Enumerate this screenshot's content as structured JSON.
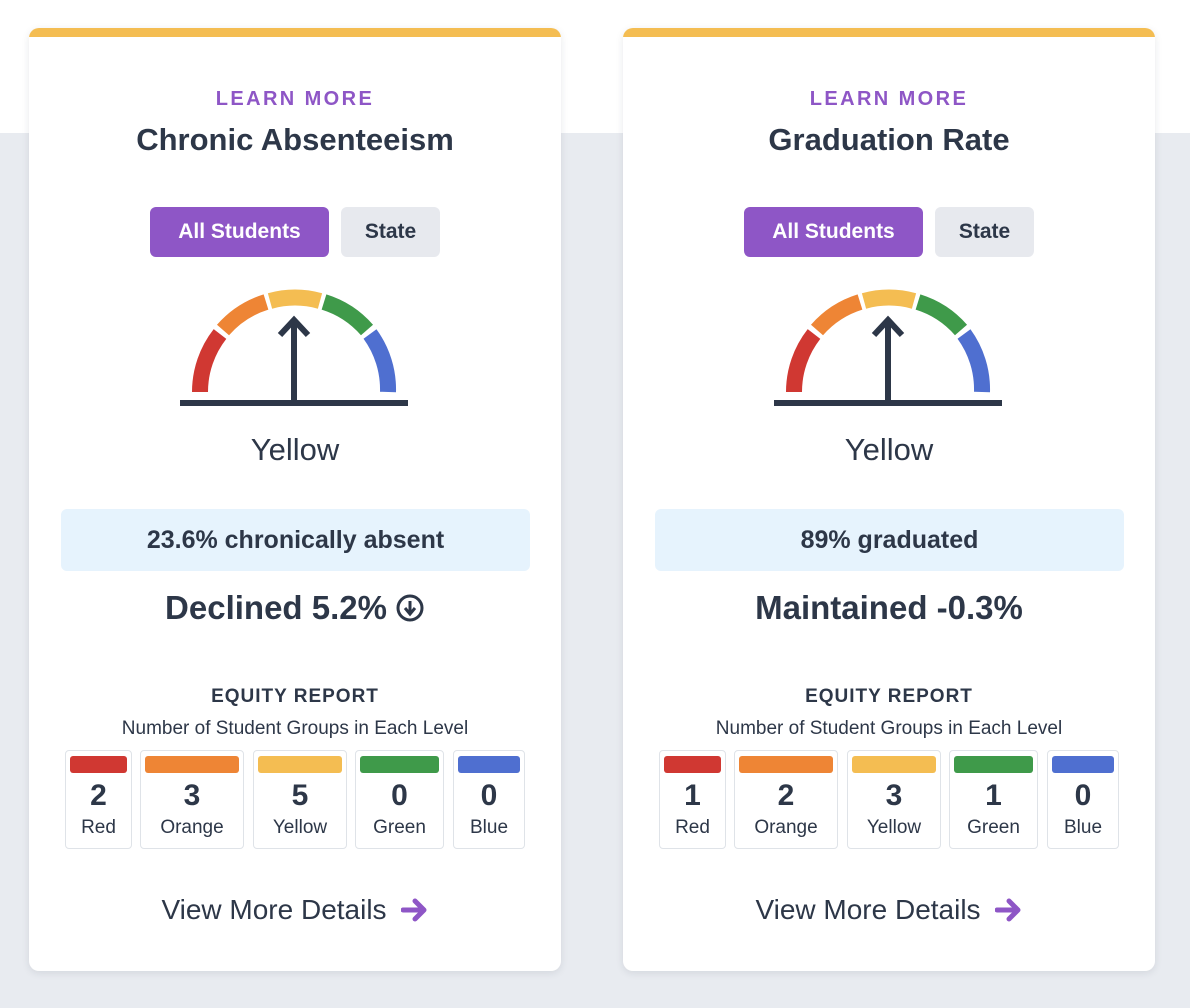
{
  "colors": {
    "accent": "#8e56c6",
    "red": "#d03832",
    "orange": "#ee8535",
    "yellow": "#f4bd52",
    "green": "#3f9a4a",
    "blue": "#4f6fd0"
  },
  "cards": [
    {
      "learn_more": "LEARN MORE",
      "title": "Chronic Absenteeism",
      "toggle_active": "All Students",
      "toggle_inactive": "State",
      "gauge_level": "Yellow",
      "stat": "23.6% chronically absent",
      "change": "Declined 5.2%",
      "change_icon": "arrow-circle-down-icon",
      "equity_heading": "EQUITY REPORT",
      "equity_subtitle": "Number of Student Groups in Each Level",
      "levels": [
        {
          "count": "2",
          "name": "Red"
        },
        {
          "count": "3",
          "name": "Orange"
        },
        {
          "count": "5",
          "name": "Yellow"
        },
        {
          "count": "0",
          "name": "Green"
        },
        {
          "count": "0",
          "name": "Blue"
        }
      ],
      "details": "View More Details"
    },
    {
      "learn_more": "LEARN MORE",
      "title": "Graduation Rate",
      "toggle_active": "All Students",
      "toggle_inactive": "State",
      "gauge_level": "Yellow",
      "stat": "89% graduated",
      "change": "Maintained -0.3%",
      "equity_heading": "EQUITY REPORT",
      "equity_subtitle": "Number of Student Groups in Each Level",
      "levels": [
        {
          "count": "1",
          "name": "Red"
        },
        {
          "count": "2",
          "name": "Orange"
        },
        {
          "count": "3",
          "name": "Yellow"
        },
        {
          "count": "1",
          "name": "Green"
        },
        {
          "count": "0",
          "name": "Blue"
        }
      ],
      "details": "View More Details"
    }
  ]
}
